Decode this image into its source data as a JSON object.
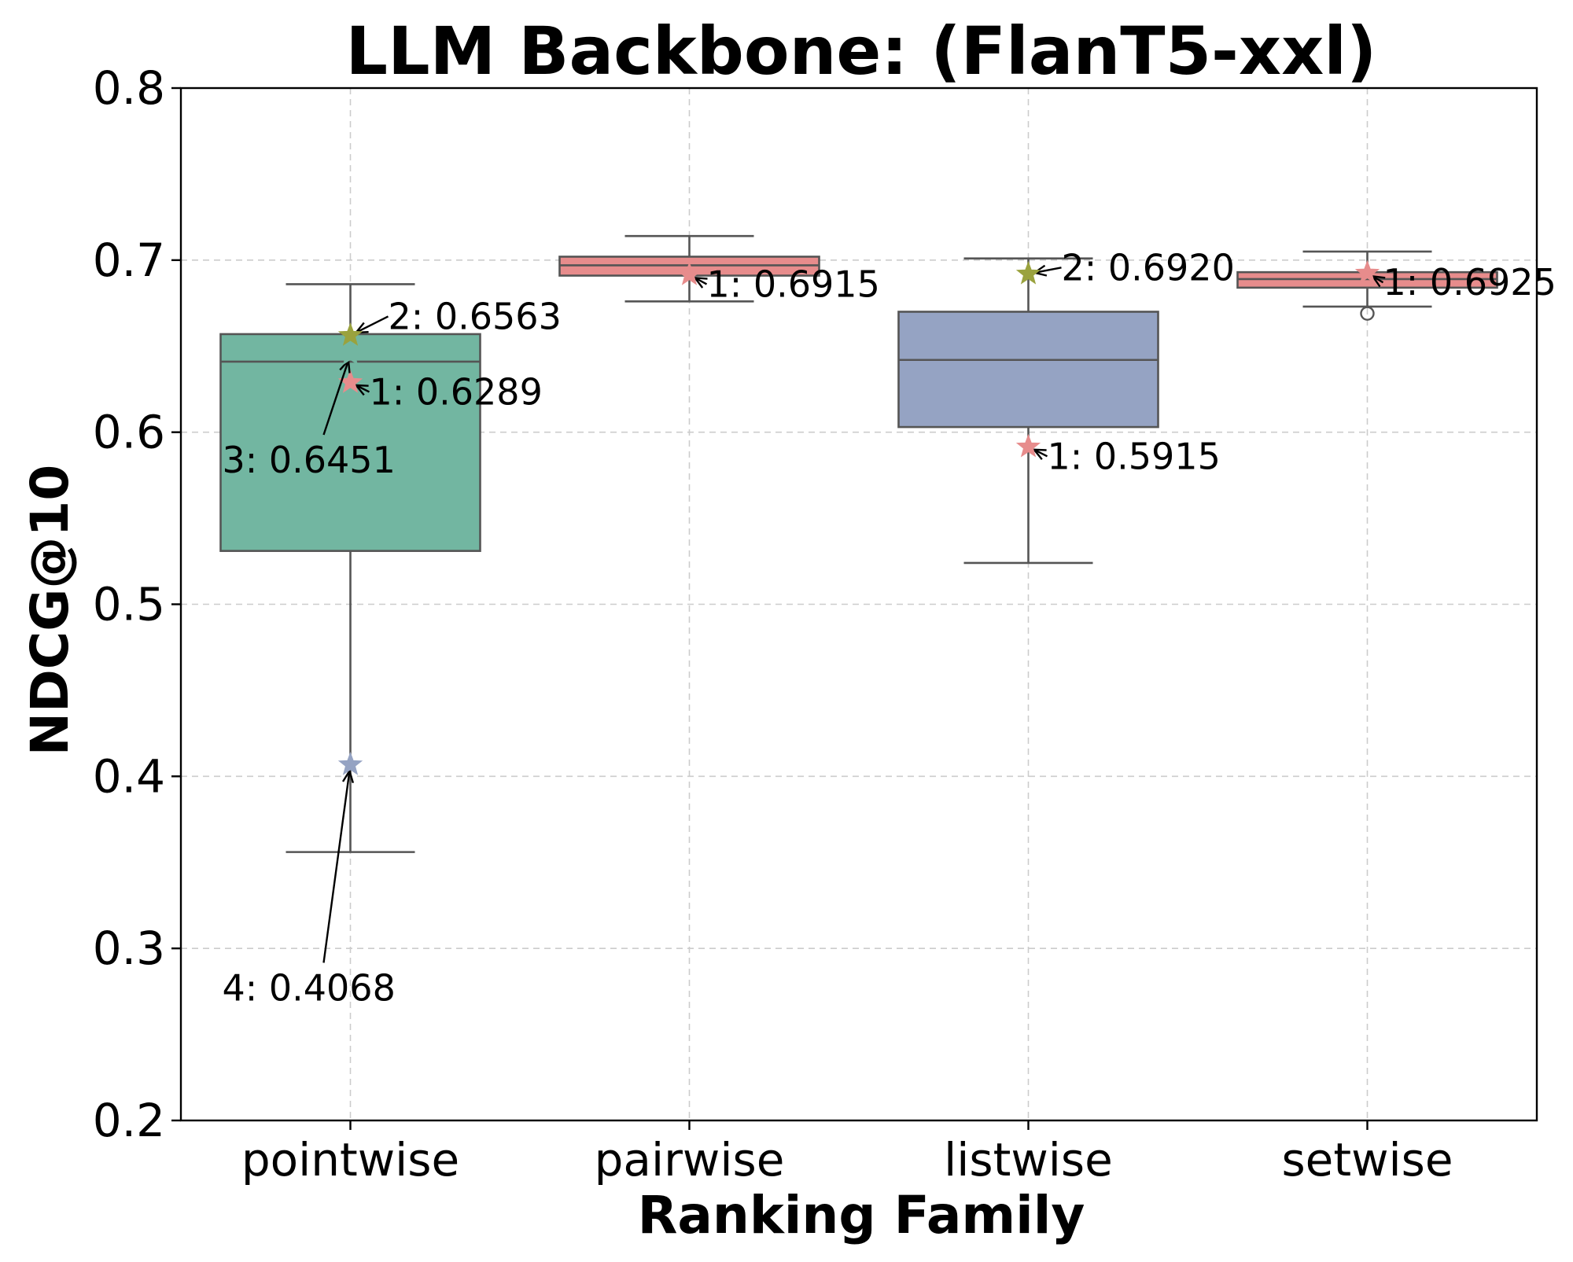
{
  "chart_data": {
    "type": "box",
    "title": "LLM Backbone: (FlanT5-xxl)",
    "xlabel": "Ranking Family",
    "ylabel": "NDCG@10",
    "ylim": [
      0.2,
      0.8
    ],
    "yticks": [
      "0.2",
      "0.3",
      "0.4",
      "0.5",
      "0.6",
      "0.7",
      "0.8"
    ],
    "grid": true,
    "categories": [
      "pointwise",
      "pairwise",
      "listwise",
      "setwise"
    ],
    "boxes": [
      {
        "category": "pointwise",
        "color": "#72b6a1",
        "whisker_low": 0.356,
        "q1": 0.531,
        "median": 0.641,
        "q3": 0.657,
        "whisker_high": 0.686,
        "outliers": []
      },
      {
        "category": "pairwise",
        "color": "#e78c8c",
        "whisker_low": 0.676,
        "q1": 0.691,
        "median": 0.697,
        "q3": 0.702,
        "whisker_high": 0.714,
        "outliers": []
      },
      {
        "category": "listwise",
        "color": "#95a3c3",
        "whisker_low": 0.524,
        "q1": 0.603,
        "median": 0.642,
        "q3": 0.67,
        "whisker_high": 0.701,
        "outliers": []
      },
      {
        "category": "setwise",
        "color": "#e78c8c",
        "whisker_low": 0.673,
        "q1": 0.684,
        "median": 0.689,
        "q3": 0.693,
        "whisker_high": 0.705,
        "outliers": [
          0.669
        ]
      }
    ],
    "highlighted_points": [
      {
        "category": "pointwise",
        "value": 0.6563,
        "label": "2: 0.6563",
        "color": "#9aa23e"
      },
      {
        "category": "pointwise",
        "value": 0.6289,
        "label": "1: 0.6289",
        "color": "#e78c8c"
      },
      {
        "category": "pointwise",
        "value": 0.6451,
        "label": "3: 0.6451",
        "color": "#72b6a1"
      },
      {
        "category": "pointwise",
        "value": 0.4068,
        "label": "4: 0.4068",
        "color": "#95a3c3"
      },
      {
        "category": "pairwise",
        "value": 0.6915,
        "label": "1: 0.6915",
        "color": "#e78c8c"
      },
      {
        "category": "listwise",
        "value": 0.692,
        "label": "2: 0.6920",
        "color": "#9aa23e"
      },
      {
        "category": "listwise",
        "value": 0.5915,
        "label": "1: 0.5915",
        "color": "#e78c8c"
      },
      {
        "category": "setwise",
        "value": 0.6925,
        "label": "1: 0.6925",
        "color": "#e78c8c"
      }
    ]
  }
}
